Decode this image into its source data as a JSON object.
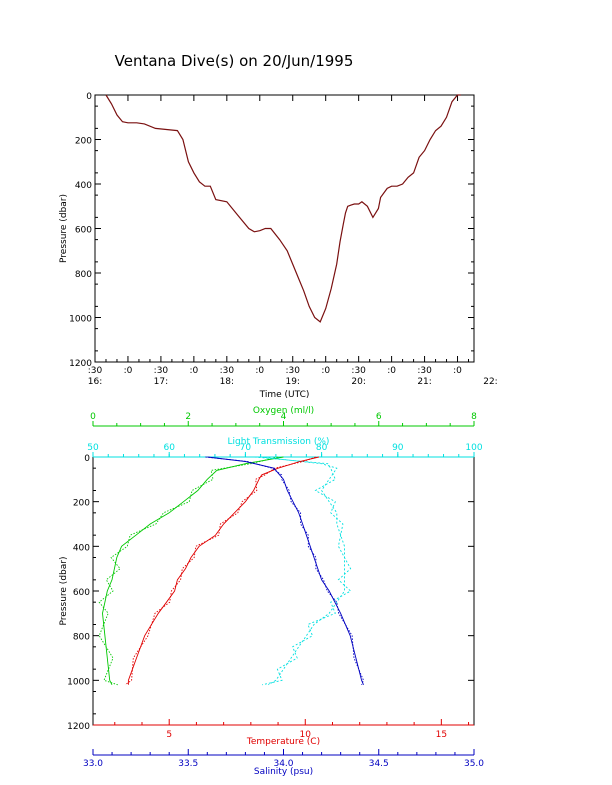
{
  "title": "Ventana Dive(s) on 20/Jun/1995",
  "colors": {
    "axis": "#000000",
    "temperature": "#e00000",
    "salinity": "#0000c0",
    "oxygen": "#00c800",
    "light": "#00e0e0",
    "pressure_trace": "#7a1010"
  },
  "chart_data": [
    {
      "type": "line",
      "name": "top",
      "xlabel": "Time (UTC)",
      "ylabel": "Pressure (dbar)",
      "y_ticks": [
        "0",
        "200",
        "400",
        "600",
        "800",
        "1000",
        "1200"
      ],
      "x_ticks_top": [
        ":30",
        ":0",
        ":30",
        ":0",
        ":30",
        ":0",
        ":30",
        ":0",
        ":30",
        ":0",
        ":30",
        ":0"
      ],
      "x_ticks_bottom": [
        "16:",
        "17:",
        "18:",
        "19:",
        "20:",
        "21:",
        "22:"
      ],
      "xlim_minutes": [
        990,
        1335
      ],
      "ylim": [
        0,
        1200
      ],
      "y_inverted": true,
      "series": [
        {
          "x": [
            1000,
            1005,
            1010,
            1015,
            1020,
            1028,
            1035,
            1045,
            1055,
            1065,
            1070,
            1075,
            1080,
            1085,
            1090,
            1095,
            1100,
            1110,
            1120,
            1130,
            1135,
            1140,
            1145,
            1150,
            1158,
            1165,
            1170,
            1175,
            1180,
            1185,
            1190,
            1195,
            1200,
            1205,
            1210,
            1213,
            1216,
            1218,
            1220,
            1223,
            1226,
            1230,
            1233,
            1238,
            1243,
            1248,
            1250,
            1253,
            1256,
            1260,
            1265,
            1270,
            1275,
            1280,
            1285,
            1290,
            1295,
            1300,
            1305,
            1310,
            1315,
            1320,
            1323
          ],
          "y": [
            0,
            40,
            90,
            120,
            125,
            125,
            130,
            150,
            155,
            160,
            200,
            300,
            350,
            390,
            410,
            410,
            470,
            480,
            540,
            600,
            615,
            610,
            600,
            600,
            650,
            700,
            760,
            820,
            880,
            950,
            1000,
            1020,
            960,
            870,
            760,
            660,
            580,
            530,
            500,
            495,
            490,
            490,
            480,
            500,
            550,
            510,
            460,
            440,
            420,
            410,
            410,
            400,
            370,
            350,
            280,
            250,
            200,
            160,
            140,
            100,
            30,
            0,
            0
          ]
        }
      ]
    },
    {
      "type": "line",
      "name": "bottom",
      "ylabel": "Pressure (dbar)",
      "y_ticks": [
        "0",
        "200",
        "400",
        "600",
        "800",
        "1000",
        "1200"
      ],
      "ylim": [
        0,
        1200
      ],
      "y_inverted": true,
      "axes": {
        "oxygen": {
          "label": "Oxygen (ml/l)",
          "lim": [
            0,
            8
          ],
          "ticks": [
            "0",
            "2",
            "4",
            "6",
            "8"
          ]
        },
        "light": {
          "label": "Light Transmission (%)",
          "lim": [
            50,
            100
          ],
          "ticks": [
            "50",
            "60",
            "70",
            "80",
            "90",
            "100"
          ]
        },
        "temperature": {
          "label": "Temperature (C)",
          "lim": [
            2.2,
            16.2
          ],
          "ticks": [
            "5",
            "10",
            "15"
          ]
        },
        "salinity": {
          "label": "Salinity (psu)",
          "lim": [
            33.0,
            35.0
          ],
          "ticks": [
            "33.0",
            "33.5",
            "34.0",
            "34.5",
            "35.0"
          ]
        }
      },
      "series": [
        {
          "axis": "oxygen",
          "pressure": [
            0,
            30,
            60,
            100,
            150,
            200,
            250,
            300,
            350,
            400,
            450,
            500,
            550,
            600,
            650,
            700,
            800,
            900,
            1000,
            1020
          ],
          "values": [
            4.0,
            3.2,
            2.6,
            2.4,
            2.2,
            1.9,
            1.6,
            1.2,
            0.9,
            0.6,
            0.5,
            0.45,
            0.4,
            0.3,
            0.25,
            0.2,
            0.25,
            0.3,
            0.35,
            0.4
          ]
        },
        {
          "axis": "light",
          "pressure": [
            0,
            30,
            50,
            100,
            150,
            200,
            250,
            300,
            400,
            500,
            550,
            600,
            650,
            700,
            750,
            800,
            850,
            900,
            950,
            1000,
            1020
          ],
          "values": [
            72,
            80,
            82,
            81,
            80,
            81,
            82,
            82,
            83,
            83,
            83,
            83,
            82,
            81,
            79,
            78,
            77,
            76,
            75,
            74,
            73
          ]
        },
        {
          "axis": "temperature",
          "pressure": [
            0,
            20,
            50,
            80,
            100,
            150,
            200,
            250,
            300,
            350,
            400,
            450,
            500,
            550,
            600,
            650,
            700,
            800,
            900,
            1000,
            1020
          ],
          "values": [
            10.5,
            9.8,
            9.0,
            8.4,
            8.3,
            8.1,
            7.8,
            7.4,
            7.0,
            6.7,
            6.1,
            5.8,
            5.6,
            5.3,
            5.2,
            4.9,
            4.6,
            4.1,
            3.8,
            3.5,
            3.5
          ]
        },
        {
          "axis": "salinity",
          "pressure": [
            0,
            20,
            50,
            80,
            100,
            150,
            200,
            250,
            300,
            350,
            400,
            450,
            500,
            550,
            600,
            650,
            700,
            800,
            900,
            1000,
            1020
          ],
          "values": [
            33.6,
            33.8,
            33.95,
            33.98,
            34.0,
            34.02,
            34.05,
            34.08,
            34.1,
            34.12,
            34.14,
            34.16,
            34.18,
            34.2,
            34.24,
            34.27,
            34.3,
            34.35,
            34.38,
            34.41,
            34.42
          ]
        }
      ]
    }
  ]
}
